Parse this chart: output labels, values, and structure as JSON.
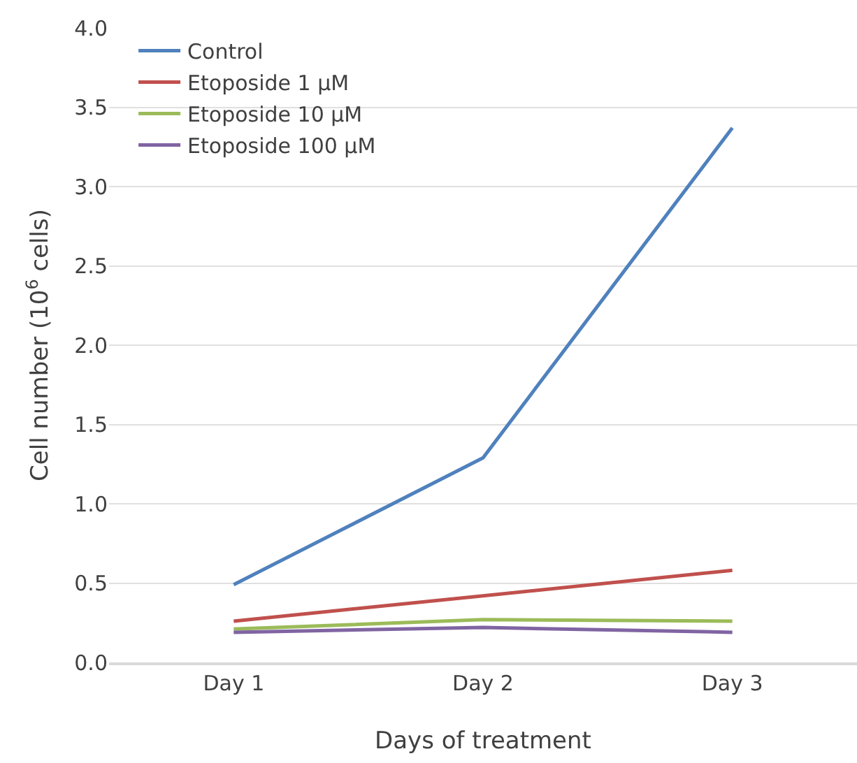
{
  "chart_data": {
    "type": "line",
    "xlabel": "Days of treatment",
    "ylabel": "Cell number (10$^{6}$ cells)",
    "categories": [
      "Day 1",
      "Day 2",
      "Day 3"
    ],
    "series": [
      {
        "name": "Control",
        "color": "#4f81bd",
        "values": [
          0.49,
          1.29,
          3.37
        ]
      },
      {
        "name": "Etoposide 1 µM",
        "color": "#c0504d",
        "values": [
          0.26,
          0.42,
          0.58
        ]
      },
      {
        "name": "Etoposide 10 µM",
        "color": "#9bbb59",
        "values": [
          0.21,
          0.27,
          0.26
        ]
      },
      {
        "name": "Etoposide 100 µM",
        "color": "#8064a2",
        "values": [
          0.19,
          0.22,
          0.19
        ]
      }
    ],
    "ylim": [
      0,
      4
    ],
    "yticks": [
      {
        "value": 0,
        "label": "0.0"
      },
      {
        "value": 0.5,
        "label": "0.5"
      },
      {
        "value": 1,
        "label": "1.0"
      },
      {
        "value": 1.5,
        "label": "1.5"
      },
      {
        "value": 2,
        "label": "2.0"
      },
      {
        "value": 2.5,
        "label": "2.5"
      },
      {
        "value": 3,
        "label": "3.0"
      },
      {
        "value": 3.5,
        "label": "3.5"
      },
      {
        "value": 4,
        "label": "4.0"
      }
    ],
    "grid": "y",
    "legend": "top left",
    "marker": "none",
    "line_style": "solid"
  }
}
